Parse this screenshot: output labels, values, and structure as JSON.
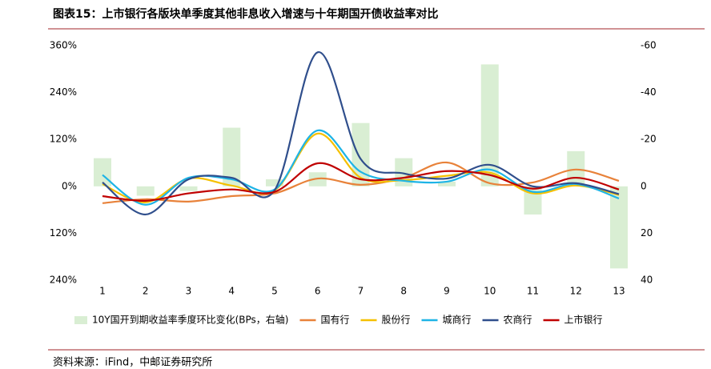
{
  "chart_data": {
    "type": "line",
    "title": "图表15：上市银行各版块单季度其他非息收入增速与十年期国开债收益率对比",
    "source": "资料来源：iFind，中邮证券研究所",
    "categories": [
      "1",
      "2",
      "3",
      "4",
      "5",
      "6",
      "7",
      "8",
      "9",
      "10",
      "11",
      "12",
      "13"
    ],
    "ylim": [
      -240,
      360
    ],
    "yticks": [
      {
        "value": 360,
        "label": "360%"
      },
      {
        "value": 240,
        "label": "240%"
      },
      {
        "value": 120,
        "label": "120%"
      },
      {
        "value": 0,
        "label": "0%"
      },
      {
        "value": -120,
        "label": "120%"
      },
      {
        "value": -240,
        "label": "240%"
      }
    ],
    "y2lim": [
      40,
      -60
    ],
    "y2ticks": [
      -60,
      -40,
      -20,
      0,
      20,
      40
    ],
    "series": [
      {
        "name": "10Y国开到期收益率季度环比变化(BPs，右轴)",
        "type": "bar",
        "axis": "y2",
        "color": "#d9eed3",
        "values": [
          -12,
          4,
          2,
          -25,
          -3,
          -6,
          -27,
          -12,
          -2,
          -52,
          12,
          -15,
          35
        ]
      },
      {
        "name": "国有行",
        "color": "#e8823a",
        "values": [
          -43,
          -33,
          -39,
          -25,
          -18,
          20,
          4,
          22,
          61,
          8,
          10,
          43,
          14
        ]
      },
      {
        "name": "股份行",
        "color": "#f5c000",
        "values": [
          6,
          -41,
          20,
          2,
          -10,
          135,
          22,
          16,
          27,
          35,
          -18,
          2,
          -22
        ]
      },
      {
        "name": "城商行",
        "color": "#1eb4e6",
        "values": [
          29,
          -47,
          22,
          18,
          -8,
          143,
          37,
          14,
          12,
          43,
          -14,
          6,
          -31
        ]
      },
      {
        "name": "农商行",
        "color": "#2f4e8c",
        "values": [
          10,
          -72,
          18,
          22,
          -10,
          343,
          70,
          33,
          20,
          55,
          0,
          8,
          -20
        ]
      },
      {
        "name": "上市银行",
        "color": "#c00000",
        "values": [
          -25,
          -37,
          -18,
          -8,
          -14,
          59,
          18,
          22,
          39,
          29,
          -6,
          22,
          -8
        ]
      }
    ]
  }
}
